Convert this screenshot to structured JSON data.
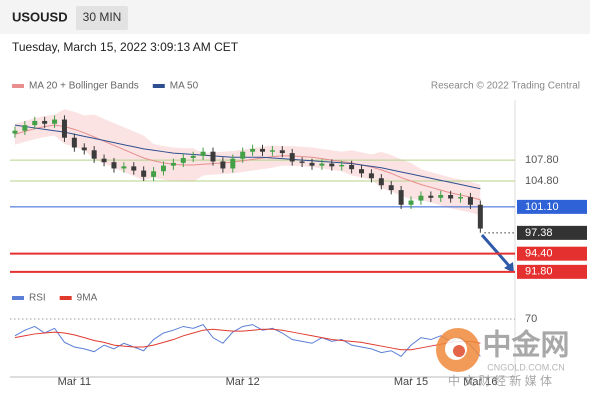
{
  "header": {
    "symbol": "USOUSD",
    "interval": "30 MIN",
    "datetime": "Tuesday, March 15, 2022 3:09:13 AM CET",
    "copyright": "Research © 2022 Trading Central"
  },
  "watermark": {
    "brand": "中金网",
    "site": "CNGOLD.COM.CN",
    "tagline": "中 文 财 经 新 媒 体"
  },
  "chart_data": [
    {
      "type": "candlestick",
      "x": [
        0,
        1,
        2,
        3,
        4,
        5,
        6,
        7,
        8,
        9,
        10,
        11,
        12,
        13,
        14,
        15,
        16,
        17,
        18,
        19,
        20,
        21,
        22,
        23,
        24,
        25,
        26,
        27,
        28,
        29,
        30,
        31,
        32,
        33,
        34,
        35,
        36,
        37,
        38,
        39,
        40,
        41,
        42,
        43,
        44,
        45,
        46,
        47
      ],
      "open": [
        111.6,
        112.0,
        112.8,
        113.4,
        113.0,
        113.6,
        111.0,
        109.6,
        109.2,
        108.0,
        107.5,
        106.6,
        106.9,
        106.3,
        105.4,
        106.2,
        107.0,
        107.4,
        108.1,
        108.4,
        109.0,
        107.6,
        106.6,
        108.0,
        109.0,
        109.4,
        109.0,
        109.2,
        108.8,
        107.6,
        107.4,
        107.0,
        107.3,
        106.9,
        107.1,
        106.5,
        105.9,
        105.2,
        104.2,
        103.5,
        101.4,
        102.0,
        102.7,
        102.4,
        102.8,
        102.3,
        102.5,
        101.4
      ],
      "high": [
        112.6,
        113.4,
        114.0,
        114.0,
        114.2,
        114.2,
        111.6,
        110.2,
        109.8,
        108.6,
        108.1,
        107.5,
        107.5,
        106.9,
        106.8,
        107.6,
        108.0,
        108.7,
        109.0,
        109.6,
        109.6,
        108.2,
        108.6,
        109.6,
        110.0,
        110.0,
        109.8,
        109.8,
        109.4,
        108.2,
        108.0,
        107.9,
        107.9,
        107.7,
        107.7,
        107.1,
        106.5,
        105.8,
        104.8,
        104.1,
        102.6,
        103.3,
        103.3,
        103.4,
        103.4,
        103.1,
        103.1,
        102.0
      ],
      "low": [
        111.0,
        111.4,
        112.2,
        112.4,
        112.4,
        110.4,
        109.0,
        108.6,
        107.4,
        106.9,
        106.0,
        106.0,
        105.7,
        104.8,
        104.8,
        105.6,
        106.4,
        106.8,
        107.5,
        107.8,
        107.0,
        106.0,
        106.0,
        107.4,
        108.4,
        108.4,
        108.4,
        108.2,
        107.0,
        106.8,
        106.4,
        106.4,
        106.3,
        106.3,
        105.9,
        105.3,
        104.6,
        103.6,
        102.9,
        100.8,
        100.8,
        101.4,
        101.8,
        101.8,
        101.7,
        101.7,
        100.8,
        97.4
      ],
      "close": [
        112.0,
        112.8,
        113.4,
        113.0,
        113.6,
        111.0,
        109.6,
        109.2,
        108.0,
        107.5,
        106.6,
        106.9,
        106.3,
        105.4,
        106.2,
        107.0,
        107.4,
        108.1,
        108.4,
        109.0,
        107.6,
        106.6,
        108.0,
        109.0,
        109.4,
        109.0,
        109.2,
        108.8,
        107.6,
        107.4,
        107.0,
        107.3,
        106.9,
        107.1,
        106.5,
        105.9,
        105.2,
        104.2,
        103.5,
        101.4,
        102.0,
        102.7,
        102.4,
        102.8,
        102.3,
        102.5,
        101.4,
        98.0
      ],
      "up_color": "#43a047",
      "down_color": "#3b3b3b",
      "overlays": [
        {
          "name": "MA 20 + Bollinger Bands",
          "color": "#e88e8e",
          "band_color": "#fbe3e3",
          "values": [
            111.5,
            111.9,
            112.3,
            112.6,
            112.8,
            112.6,
            112.2,
            111.7,
            111.1,
            110.5,
            109.9,
            109.3,
            108.7,
            108.1,
            107.7,
            107.4,
            107.2,
            107.1,
            107.1,
            107.2,
            107.3,
            107.4,
            107.5,
            107.7,
            107.9,
            108.1,
            108.3,
            108.4,
            108.4,
            108.3,
            108.2,
            108.0,
            107.8,
            107.6,
            107.4,
            107.1,
            106.8,
            106.4,
            105.9,
            105.3,
            104.8,
            104.3,
            103.9,
            103.5,
            103.1,
            102.8,
            102.5,
            102.1
          ],
          "upper": [
            113.0,
            113.4,
            113.8,
            114.1,
            114.3,
            115.1,
            114.7,
            114.2,
            114.3,
            113.7,
            113.1,
            112.5,
            111.9,
            111.3,
            110.1,
            109.8,
            109.6,
            109.5,
            109.5,
            108.8,
            108.9,
            109.0,
            109.1,
            109.3,
            109.5,
            109.7,
            109.9,
            109.8,
            109.8,
            109.7,
            109.6,
            109.4,
            109.2,
            109.0,
            109.2,
            108.9,
            108.6,
            109.0,
            108.5,
            107.9,
            107.4,
            106.5,
            106.1,
            105.7,
            105.3,
            105.0,
            104.7,
            104.3
          ],
          "lower": [
            110.0,
            110.4,
            110.8,
            111.1,
            111.3,
            110.1,
            109.7,
            109.2,
            107.9,
            107.3,
            106.7,
            106.1,
            105.5,
            104.9,
            105.3,
            105.0,
            104.8,
            104.7,
            104.7,
            105.6,
            105.7,
            105.8,
            105.9,
            106.1,
            106.3,
            106.5,
            106.7,
            107.0,
            107.0,
            106.9,
            106.8,
            106.6,
            106.4,
            106.2,
            105.6,
            105.3,
            105.0,
            103.8,
            103.3,
            102.7,
            102.2,
            102.1,
            101.7,
            101.3,
            100.9,
            100.6,
            100.3,
            99.9
          ]
        },
        {
          "name": "MA 50",
          "color": "#2e4f8f",
          "values": [
            112.8,
            112.6,
            112.4,
            112.2,
            112.0,
            111.8,
            111.5,
            111.2,
            110.9,
            110.6,
            110.3,
            110.0,
            109.7,
            109.4,
            109.2,
            109.0,
            108.8,
            108.7,
            108.6,
            108.5,
            108.4,
            108.3,
            108.2,
            108.2,
            108.2,
            108.2,
            108.1,
            108.0,
            107.9,
            107.8,
            107.7,
            107.6,
            107.5,
            107.4,
            107.3,
            107.1,
            106.9,
            106.7,
            106.4,
            106.1,
            105.8,
            105.5,
            105.2,
            104.9,
            104.6,
            104.3,
            104.0,
            103.7
          ]
        }
      ],
      "levels": [
        {
          "value": 107.8,
          "label": "107.80",
          "color": "#b5d38a",
          "style": "solid",
          "box": false
        },
        {
          "value": 104.8,
          "label": "104.80",
          "color": "#b5d38a",
          "style": "solid",
          "box": false
        },
        {
          "value": 101.1,
          "label": "101.10",
          "color": "#2f62d6",
          "style": "solid",
          "box": true
        },
        {
          "value": 97.38,
          "label": "97.38",
          "color": "#333333",
          "style": "dotted",
          "box": true
        },
        {
          "value": 94.4,
          "label": "94.40",
          "color": "#e53030",
          "style": "solid",
          "box": true
        },
        {
          "value": 91.8,
          "label": "91.80",
          "color": "#e53030",
          "style": "solid",
          "box": true
        }
      ],
      "xlim": [
        -0.5,
        50.5
      ],
      "ylim": [
        89.2,
        116.4
      ]
    },
    {
      "type": "line",
      "x": [
        0,
        1,
        2,
        3,
        4,
        5,
        6,
        7,
        8,
        9,
        10,
        11,
        12,
        13,
        14,
        15,
        16,
        17,
        18,
        19,
        20,
        21,
        22,
        23,
        24,
        25,
        26,
        27,
        28,
        29,
        30,
        31,
        32,
        33,
        34,
        35,
        36,
        37,
        38,
        39,
        40,
        41,
        42,
        43,
        44,
        45,
        46,
        47
      ],
      "series": [
        {
          "name": "RSI",
          "color": "#5b7fd6",
          "values": [
            52,
            58,
            62,
            55,
            60,
            45,
            40,
            38,
            35,
            42,
            38,
            44,
            40,
            36,
            48,
            55,
            58,
            62,
            60,
            64,
            50,
            44,
            56,
            62,
            64,
            58,
            60,
            55,
            48,
            46,
            44,
            50,
            46,
            48,
            42,
            40,
            38,
            34,
            36,
            30,
            42,
            50,
            48,
            52,
            46,
            50,
            42,
            30
          ]
        },
        {
          "name": "9MA",
          "color": "#e03a2f",
          "values": [
            50,
            52,
            54,
            55,
            56,
            55,
            53,
            50,
            47,
            45,
            42,
            41,
            40,
            40,
            42,
            45,
            48,
            52,
            55,
            58,
            59,
            58,
            57,
            57,
            58,
            59,
            59,
            58,
            56,
            54,
            52,
            50,
            48,
            47,
            46,
            45,
            43,
            41,
            39,
            37,
            37,
            39,
            41,
            43,
            45,
            46,
            46,
            44
          ]
        }
      ],
      "xlim": [
        -0.5,
        50.5
      ],
      "ylim": [
        10,
        85
      ],
      "yticks": [
        70
      ],
      "xticks": [
        {
          "value": 6,
          "label": "Mar 11"
        },
        {
          "value": 23,
          "label": "Mar 12"
        },
        {
          "value": 40,
          "label": "Mar 15"
        },
        {
          "value": 47,
          "label": "Mar 16"
        }
      ]
    }
  ]
}
